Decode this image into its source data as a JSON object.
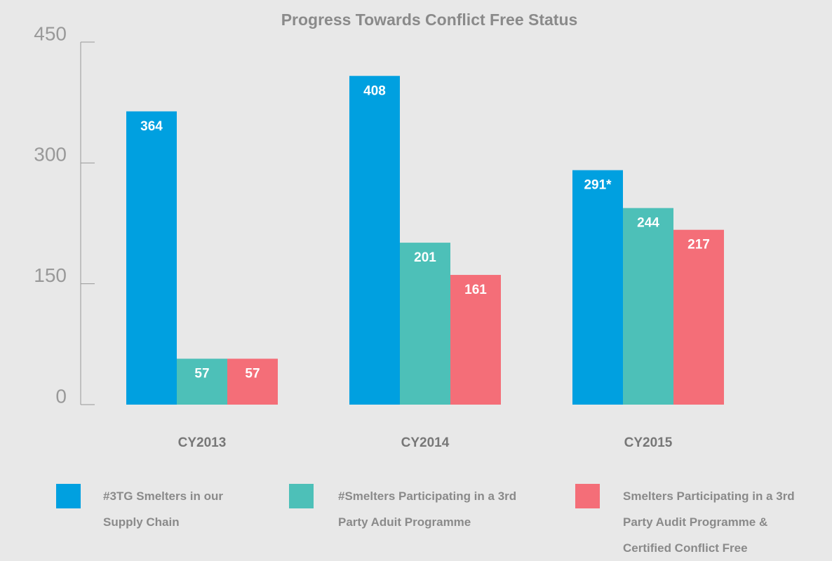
{
  "chart_data": {
    "type": "bar",
    "title": "Progress Towards Conflict Free Status",
    "categories": [
      "CY2013",
      "CY2014",
      "CY2015"
    ],
    "series": [
      {
        "name": "#3TG Smelters in our Supply Chain",
        "color": "#00a0e0",
        "values": [
          364,
          408,
          291
        ],
        "value_labels": [
          "364",
          "408",
          "291*"
        ]
      },
      {
        "name": "#Smelters Participating in a 3rd Party Aduit Programme",
        "color": "#4dc0b8",
        "values": [
          57,
          201,
          244
        ]
      },
      {
        "name": "Smelters Participating in a 3rd Party Audit Programme & Certified Conflict Free",
        "color": "#f46e78",
        "values": [
          57,
          161,
          217
        ]
      }
    ],
    "ylim": [
      0,
      450
    ],
    "yticks": [
      0,
      150,
      300,
      450
    ]
  }
}
